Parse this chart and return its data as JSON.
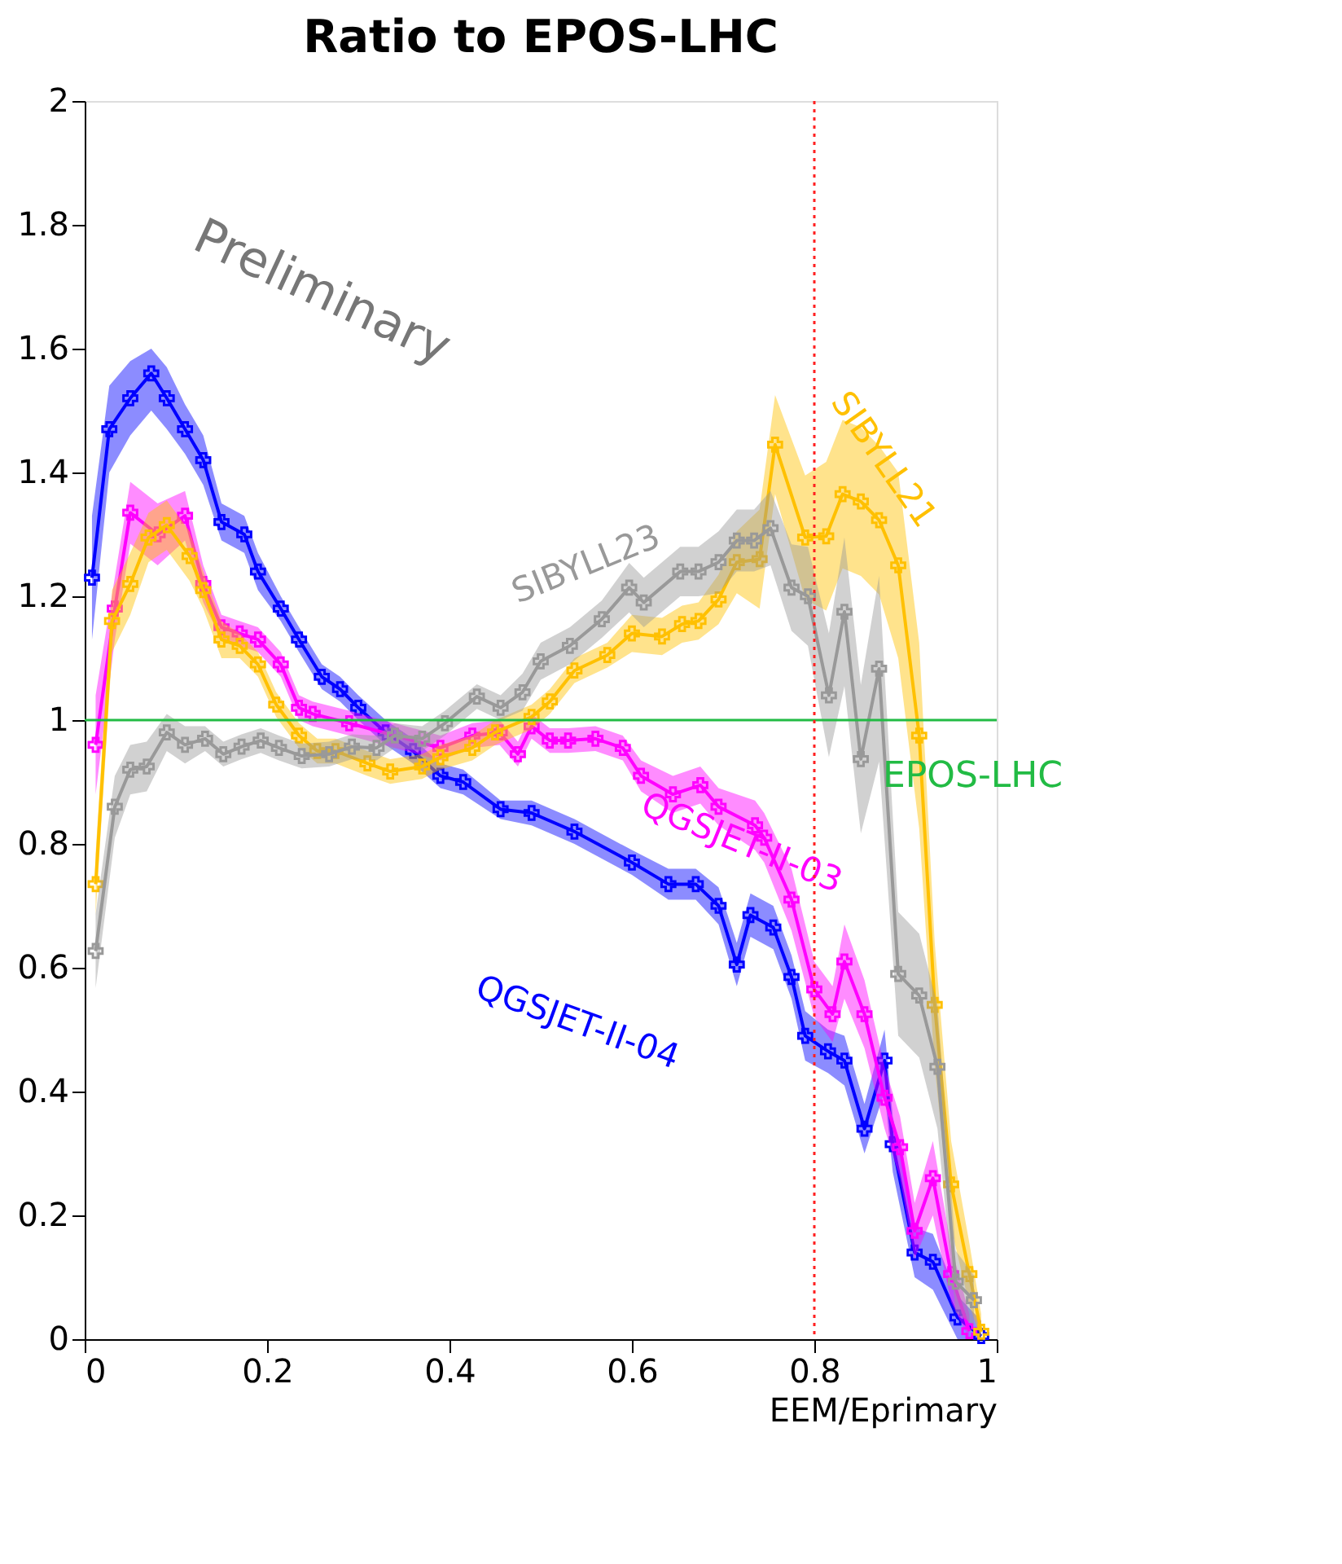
{
  "chart_data": {
    "type": "line",
    "title": "Ratio to EPOS-LHC",
    "xlabel": "EEM/Eprimary",
    "xlim": [
      0,
      1
    ],
    "ylim": [
      0,
      2
    ],
    "xticks": [
      0,
      0.2,
      0.4,
      0.6,
      0.8,
      1
    ],
    "yticks": [
      0,
      0.2,
      0.4,
      0.6,
      0.8,
      1,
      1.2,
      1.4,
      1.6,
      1.8,
      2
    ],
    "grid": false,
    "marker": "cross",
    "line_style": "solid",
    "series": [
      {
        "name": "QGSJET-II-04",
        "color": "#0000ff",
        "x": [
          0.008,
          0.027,
          0.05,
          0.073,
          0.09,
          0.11,
          0.13,
          0.15,
          0.175,
          0.19,
          0.215,
          0.235,
          0.26,
          0.28,
          0.3,
          0.33,
          0.36,
          0.39,
          0.415,
          0.456,
          0.49,
          0.537,
          0.6,
          0.64,
          0.67,
          0.695,
          0.715,
          0.73,
          0.755,
          0.775,
          0.79,
          0.815,
          0.833,
          0.855,
          0.877,
          0.886,
          0.91,
          0.93,
          0.957,
          0.983
        ],
        "values": [
          1.23,
          1.47,
          1.52,
          1.56,
          1.52,
          1.47,
          1.42,
          1.32,
          1.3,
          1.24,
          1.18,
          1.13,
          1.07,
          1.05,
          1.02,
          0.98,
          0.95,
          0.91,
          0.9,
          0.856,
          0.85,
          0.82,
          0.77,
          0.735,
          0.735,
          0.7,
          0.605,
          0.685,
          0.665,
          0.585,
          0.49,
          0.465,
          0.45,
          0.34,
          0.45,
          0.315,
          0.14,
          0.125,
          0.035,
          0.005
        ],
        "lower": [
          1.13,
          1.4,
          1.46,
          1.5,
          1.47,
          1.43,
          1.38,
          1.29,
          1.27,
          1.21,
          1.16,
          1.11,
          1.05,
          1.03,
          1.0,
          0.96,
          0.93,
          0.89,
          0.88,
          0.84,
          0.83,
          0.8,
          0.75,
          0.71,
          0.71,
          0.67,
          0.57,
          0.65,
          0.63,
          0.55,
          0.45,
          0.43,
          0.41,
          0.3,
          0.4,
          0.27,
          0.1,
          0.08,
          0,
          0
        ],
        "upper": [
          1.33,
          1.54,
          1.58,
          1.6,
          1.57,
          1.51,
          1.46,
          1.35,
          1.33,
          1.27,
          1.2,
          1.15,
          1.09,
          1.07,
          1.04,
          1.0,
          0.97,
          0.93,
          0.92,
          0.87,
          0.87,
          0.84,
          0.79,
          0.76,
          0.76,
          0.73,
          0.64,
          0.72,
          0.7,
          0.62,
          0.53,
          0.5,
          0.49,
          0.38,
          0.5,
          0.36,
          0.18,
          0.17,
          0.07,
          0.03
        ]
      },
      {
        "name": "QGSJET-II-03",
        "color": "#ff00ff",
        "x": [
          0.012,
          0.033,
          0.05,
          0.08,
          0.11,
          0.13,
          0.15,
          0.17,
          0.19,
          0.215,
          0.235,
          0.25,
          0.29,
          0.34,
          0.39,
          0.425,
          0.455,
          0.475,
          0.49,
          0.51,
          0.53,
          0.56,
          0.59,
          0.61,
          0.645,
          0.675,
          0.695,
          0.735,
          0.745,
          0.775,
          0.8,
          0.82,
          0.833,
          0.855,
          0.877,
          0.894,
          0.91,
          0.93,
          0.95,
          0.97
        ],
        "values": [
          0.96,
          1.18,
          1.335,
          1.3,
          1.33,
          1.22,
          1.15,
          1.14,
          1.13,
          1.09,
          1.02,
          1.01,
          0.995,
          0.975,
          0.955,
          0.975,
          0.98,
          0.945,
          0.99,
          0.967,
          0.967,
          0.97,
          0.955,
          0.91,
          0.88,
          0.895,
          0.86,
          0.83,
          0.81,
          0.71,
          0.565,
          0.525,
          0.61,
          0.525,
          0.39,
          0.31,
          0.175,
          0.26,
          0.105,
          0.013
        ],
        "lower": [
          0.88,
          1.13,
          1.285,
          1.25,
          1.29,
          1.19,
          1.13,
          1.12,
          1.11,
          1.07,
          1.0,
          0.99,
          0.975,
          0.955,
          0.935,
          0.955,
          0.96,
          0.925,
          0.97,
          0.947,
          0.947,
          0.95,
          0.935,
          0.885,
          0.85,
          0.865,
          0.83,
          0.79,
          0.77,
          0.66,
          0.52,
          0.48,
          0.55,
          0.47,
          0.34,
          0.26,
          0.13,
          0.2,
          0.06,
          0
        ],
        "upper": [
          1.04,
          1.23,
          1.385,
          1.35,
          1.37,
          1.25,
          1.17,
          1.16,
          1.15,
          1.11,
          1.04,
          1.03,
          1.015,
          0.995,
          0.975,
          0.995,
          1.0,
          0.965,
          1.01,
          0.987,
          0.987,
          0.99,
          0.975,
          0.935,
          0.91,
          0.925,
          0.89,
          0.87,
          0.85,
          0.76,
          0.61,
          0.57,
          0.67,
          0.58,
          0.44,
          0.36,
          0.22,
          0.32,
          0.15,
          0.04
        ]
      },
      {
        "name": "SIBYLL21",
        "color": "#ffc000",
        "x": [
          0.012,
          0.03,
          0.05,
          0.07,
          0.09,
          0.115,
          0.13,
          0.15,
          0.17,
          0.19,
          0.21,
          0.235,
          0.255,
          0.275,
          0.31,
          0.335,
          0.37,
          0.39,
          0.425,
          0.45,
          0.49,
          0.51,
          0.537,
          0.573,
          0.6,
          0.633,
          0.655,
          0.673,
          0.695,
          0.715,
          0.74,
          0.757,
          0.79,
          0.813,
          0.831,
          0.851,
          0.871,
          0.892,
          0.915,
          0.932,
          0.95,
          0.97,
          0.983
        ],
        "values": [
          0.735,
          1.16,
          1.22,
          1.295,
          1.315,
          1.265,
          1.21,
          1.13,
          1.12,
          1.09,
          1.025,
          0.975,
          0.95,
          0.95,
          0.93,
          0.917,
          0.925,
          0.94,
          0.955,
          0.98,
          1.005,
          1.03,
          1.08,
          1.105,
          1.14,
          1.135,
          1.155,
          1.16,
          1.195,
          1.255,
          1.26,
          1.445,
          1.295,
          1.297,
          1.365,
          1.353,
          1.323,
          1.25,
          0.975,
          0.54,
          0.25,
          0.105,
          0.012
        ],
        "lower": [
          0.685,
          1.11,
          1.17,
          1.255,
          1.275,
          1.225,
          1.18,
          1.1,
          1.1,
          1.07,
          1.005,
          0.955,
          0.93,
          0.93,
          0.91,
          0.897,
          0.905,
          0.92,
          0.935,
          0.96,
          0.985,
          1.01,
          1.06,
          1.085,
          1.11,
          1.105,
          1.125,
          1.13,
          1.155,
          1.205,
          1.18,
          1.365,
          1.195,
          1.177,
          1.245,
          1.233,
          1.203,
          1.1,
          0.825,
          0.44,
          0.18,
          0.055,
          0
        ],
        "upper": [
          0.785,
          1.21,
          1.27,
          1.335,
          1.355,
          1.305,
          1.24,
          1.16,
          1.14,
          1.11,
          1.045,
          0.995,
          0.97,
          0.97,
          0.95,
          0.937,
          0.945,
          0.96,
          0.975,
          1.0,
          1.025,
          1.05,
          1.1,
          1.125,
          1.17,
          1.165,
          1.185,
          1.19,
          1.235,
          1.305,
          1.34,
          1.525,
          1.395,
          1.417,
          1.485,
          1.473,
          1.443,
          1.4,
          1.125,
          0.64,
          0.32,
          0.155,
          0.04
        ]
      },
      {
        "name": "SIBYLL23",
        "color": "#999999",
        "x": [
          0.012,
          0.033,
          0.05,
          0.068,
          0.09,
          0.11,
          0.132,
          0.152,
          0.172,
          0.193,
          0.213,
          0.238,
          0.268,
          0.293,
          0.32,
          0.34,
          0.37,
          0.395,
          0.43,
          0.456,
          0.48,
          0.5,
          0.532,
          0.567,
          0.597,
          0.613,
          0.653,
          0.673,
          0.695,
          0.715,
          0.734,
          0.752,
          0.775,
          0.793,
          0.816,
          0.833,
          0.851,
          0.871,
          0.892,
          0.915,
          0.935,
          0.955,
          0.975
        ],
        "values": [
          0.627,
          0.86,
          0.92,
          0.925,
          0.98,
          0.96,
          0.97,
          0.945,
          0.957,
          0.967,
          0.955,
          0.942,
          0.945,
          0.957,
          0.955,
          0.975,
          0.97,
          0.995,
          1.038,
          1.02,
          1.045,
          1.095,
          1.12,
          1.163,
          1.214,
          1.19,
          1.24,
          1.24,
          1.255,
          1.29,
          1.29,
          1.31,
          1.214,
          1.2,
          1.04,
          1.175,
          0.937,
          1.083,
          0.59,
          0.555,
          0.44,
          0.093,
          0.063
        ],
        "lower": [
          0.567,
          0.81,
          0.88,
          0.885,
          0.95,
          0.93,
          0.95,
          0.925,
          0.937,
          0.947,
          0.935,
          0.922,
          0.925,
          0.937,
          0.935,
          0.955,
          0.95,
          0.975,
          1.018,
          1.0,
          1.015,
          1.065,
          1.09,
          1.133,
          1.174,
          1.15,
          1.2,
          1.2,
          1.205,
          1.24,
          1.24,
          1.25,
          1.144,
          1.12,
          0.94,
          1.055,
          0.817,
          0.933,
          0.49,
          0.455,
          0.34,
          0.043,
          0.023
        ],
        "upper": [
          0.687,
          0.91,
          0.96,
          0.965,
          1.01,
          0.99,
          0.99,
          0.965,
          0.977,
          0.987,
          0.975,
          0.962,
          0.965,
          0.977,
          0.975,
          0.995,
          0.99,
          1.015,
          1.058,
          1.04,
          1.075,
          1.125,
          1.15,
          1.193,
          1.254,
          1.23,
          1.28,
          1.28,
          1.305,
          1.34,
          1.34,
          1.37,
          1.284,
          1.28,
          1.14,
          1.295,
          1.057,
          1.233,
          0.69,
          0.655,
          0.54,
          0.143,
          0.103
        ]
      }
    ],
    "ref_lines": [
      {
        "axis": "y",
        "value": 1,
        "label": "EPOS-LHC",
        "color": "#22bb44",
        "line_style": "solid"
      },
      {
        "axis": "x",
        "value": 0.8,
        "color": "#ff2020",
        "line_style": "dotted"
      }
    ],
    "annotations": [
      "Preliminary"
    ]
  }
}
